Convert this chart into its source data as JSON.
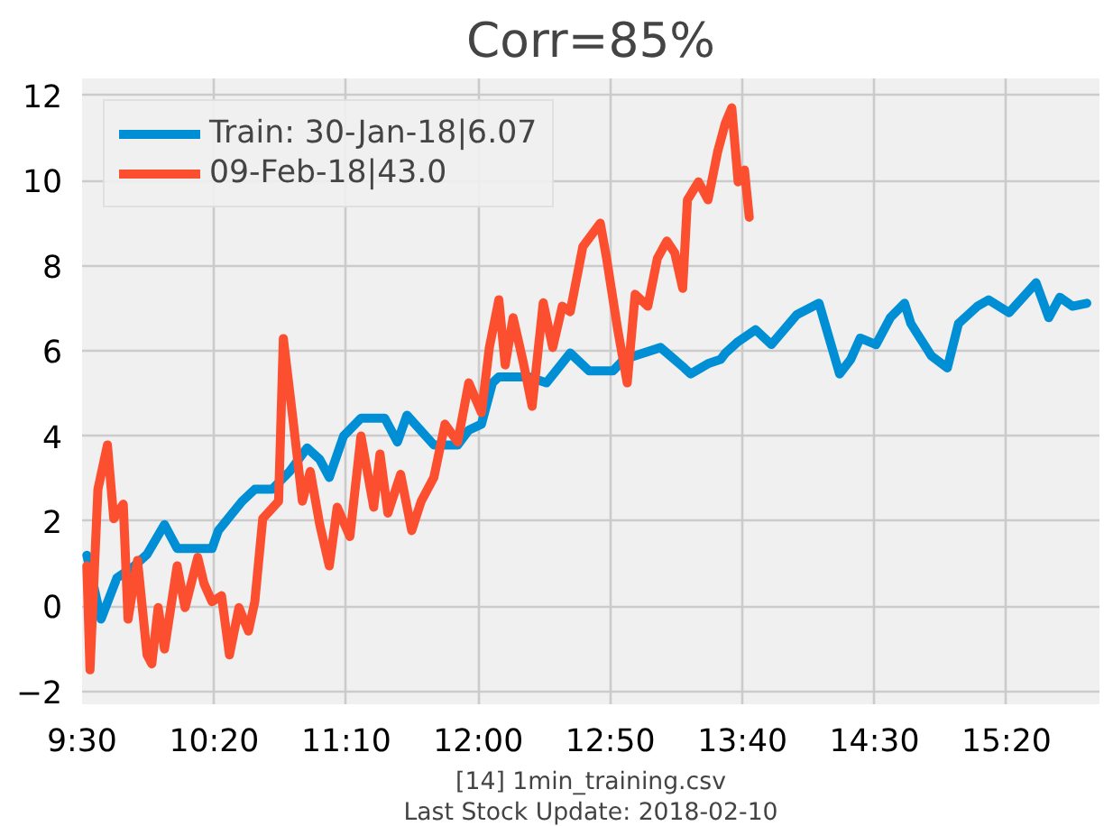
{
  "chart_data": {
    "type": "line",
    "title": "Corr=85%",
    "annotations": [
      "[14] 1min_training.csv",
      "Last Stock Update: 2018-02-10"
    ],
    "xlim": [
      9.5,
      15.92
    ],
    "ylim": [
      -2.3,
      12.4
    ],
    "xticks": [
      {
        "value": 9.5,
        "label": "9:30"
      },
      {
        "value": 10.3333,
        "label": "10:20"
      },
      {
        "value": 11.1667,
        "label": "11:10"
      },
      {
        "value": 12.0,
        "label": "12:00"
      },
      {
        "value": 12.8333,
        "label": "12:50"
      },
      {
        "value": 13.6667,
        "label": "13:40"
      },
      {
        "value": 14.5,
        "label": "14:30"
      },
      {
        "value": 15.3333,
        "label": "15:20"
      }
    ],
    "yticks": [
      -2,
      0,
      2,
      4,
      6,
      8,
      10,
      12
    ],
    "grid": true,
    "legend": "top left",
    "marker": "none",
    "line_style": "solid",
    "series": [
      {
        "name": "Train: 30-Jan-18|6.07",
        "color": "#008fd5",
        "x": [
          9.53,
          9.62,
          9.72,
          9.83,
          9.91,
          10.02,
          10.1,
          10.32,
          10.36,
          10.51,
          10.59,
          10.7,
          10.81,
          10.92,
          11.0,
          11.06,
          11.15,
          11.26,
          11.3,
          11.41,
          11.49,
          11.55,
          11.72,
          11.87,
          11.94,
          12.02,
          12.09,
          12.13,
          12.32,
          12.43,
          12.58,
          12.7,
          12.85,
          12.92,
          13.15,
          13.3,
          13.34,
          13.45,
          13.53,
          13.56,
          13.64,
          13.75,
          13.85,
          14.01,
          14.15,
          14.28,
          14.35,
          14.41,
          14.51,
          14.6,
          14.69,
          14.73,
          14.86,
          14.96,
          15.03,
          15.15,
          15.22,
          15.35,
          15.52,
          15.6,
          15.67,
          15.75,
          15.84
        ],
        "values": [
          1.2,
          -0.3,
          0.67,
          0.95,
          1.22,
          1.92,
          1.36,
          1.36,
          1.78,
          2.47,
          2.75,
          2.75,
          3.17,
          3.72,
          3.45,
          3.03,
          4.0,
          4.42,
          4.42,
          4.42,
          3.86,
          4.49,
          3.79,
          3.79,
          4.14,
          4.28,
          5.25,
          5.39,
          5.39,
          5.25,
          5.95,
          5.53,
          5.53,
          5.8,
          6.08,
          5.6,
          5.46,
          5.7,
          5.8,
          5.95,
          6.22,
          6.5,
          6.15,
          6.85,
          7.12,
          5.46,
          5.8,
          6.3,
          6.15,
          6.78,
          7.12,
          6.64,
          5.88,
          5.6,
          6.64,
          7.05,
          7.2,
          6.9,
          7.6,
          6.78,
          7.26,
          7.05,
          7.12
        ]
      },
      {
        "name": "09-Feb-18|43.0",
        "color": "#fc4f30",
        "x": [
          9.53,
          9.55,
          9.6,
          9.66,
          9.7,
          9.76,
          9.79,
          9.85,
          9.91,
          9.94,
          9.98,
          10.02,
          10.1,
          10.15,
          10.23,
          10.27,
          10.32,
          10.38,
          10.43,
          10.49,
          10.55,
          10.59,
          10.64,
          10.74,
          10.77,
          10.83,
          10.89,
          10.94,
          11.0,
          11.06,
          11.11,
          11.19,
          11.26,
          11.34,
          11.38,
          11.43,
          11.51,
          11.58,
          11.64,
          11.72,
          11.79,
          11.87,
          11.94,
          12.02,
          12.07,
          12.13,
          12.17,
          12.22,
          12.28,
          12.34,
          12.41,
          12.47,
          12.53,
          12.58,
          12.66,
          12.77,
          12.81,
          12.88,
          12.94,
          12.99,
          13.07,
          13.13,
          13.19,
          13.24,
          13.29,
          13.32,
          13.39,
          13.45,
          13.51,
          13.56,
          13.6,
          13.64,
          13.68,
          13.71
        ],
        "values": [
          0.95,
          -1.49,
          2.75,
          3.79,
          2.06,
          2.4,
          -0.3,
          1.08,
          -1.14,
          -1.35,
          -0.03,
          -1.0,
          0.95,
          -0.03,
          1.15,
          0.53,
          0.11,
          0.25,
          -1.14,
          -0.03,
          -0.58,
          0.11,
          2.06,
          2.47,
          6.29,
          4.42,
          2.47,
          3.17,
          1.92,
          0.95,
          2.33,
          1.64,
          4.0,
          2.33,
          3.58,
          2.19,
          3.1,
          1.78,
          2.47,
          3.03,
          4.28,
          3.86,
          5.25,
          4.55,
          6.08,
          7.2,
          5.67,
          6.78,
          5.8,
          4.7,
          7.13,
          6.08,
          7.05,
          6.92,
          8.45,
          9.0,
          8.17,
          6.5,
          5.25,
          7.33,
          7.05,
          8.17,
          8.58,
          8.3,
          7.47,
          9.55,
          9.97,
          9.55,
          10.67,
          11.36,
          11.71,
          9.97,
          10.25,
          9.14
        ]
      }
    ]
  }
}
